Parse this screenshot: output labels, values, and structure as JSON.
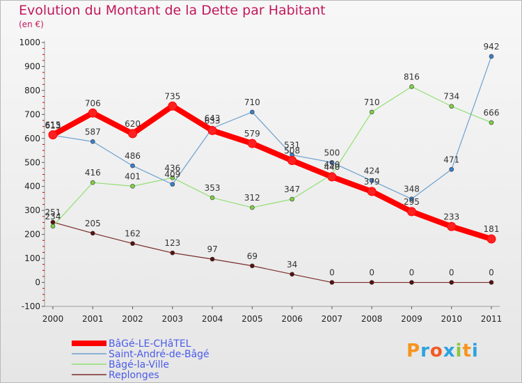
{
  "header": {
    "title": "Evolution du Montant de la Dette par Habitant",
    "subtitle": "(en €)"
  },
  "logo": {
    "text": "Proxiti",
    "colors": [
      "#f7941d",
      "#2ba3e0",
      "#f15a24",
      "#2ba3e0",
      "#8dc63f",
      "#f7941d",
      "#2ba3e0"
    ]
  },
  "chart_data": {
    "type": "line",
    "title": "Evolution du Montant de la Dette par Habitant",
    "subtitle": "(en €)",
    "x": [
      "2000",
      "2001",
      "2002",
      "2003",
      "2004",
      "2005",
      "2006",
      "2007",
      "2008",
      "2009",
      "2010",
      "2011"
    ],
    "ylim": [
      -100,
      1000
    ],
    "yticks": [
      -100,
      0,
      100,
      200,
      300,
      400,
      500,
      600,
      700,
      800,
      900,
      1000
    ],
    "grid": false,
    "legend": "bottom-left",
    "series": [
      {
        "name": "BâGé-LE-CHâTEL",
        "color": "#ff0000",
        "values": [
          615,
          706,
          620,
          735,
          633,
          579,
          508,
          440,
          379,
          295,
          233,
          181
        ]
      },
      {
        "name": "Saint-André-de-Bâgé",
        "color": "#6ca0d0",
        "values": [
          613,
          587,
          486,
          409,
          643,
          710,
          531,
          500,
          424,
          348,
          471,
          942
        ]
      },
      {
        "name": "Bâgé-la-Ville",
        "color": "#90e070",
        "values": [
          234,
          416,
          401,
          436,
          353,
          312,
          347,
          450,
          710,
          816,
          734,
          666
        ]
      },
      {
        "name": "Replonges",
        "color": "#7a2a2a",
        "values": [
          251,
          205,
          162,
          123,
          97,
          69,
          34,
          0,
          0,
          0,
          0,
          0
        ]
      }
    ],
    "data_labels": [
      [
        "615",
        "706",
        "620",
        "735",
        "633",
        "579",
        "508",
        "440",
        "379",
        "295",
        "233",
        "181"
      ],
      [
        "613",
        "587",
        "486",
        "409",
        "643",
        "710",
        "531",
        "500",
        "424",
        "348",
        "471",
        "942"
      ],
      [
        "234",
        "416",
        "401",
        "436",
        "353",
        "312",
        "347",
        "450",
        "710",
        "816",
        "734",
        "666"
      ],
      [
        "251",
        "205",
        "162",
        "123",
        "97",
        "69",
        "34",
        "0",
        "0",
        "0",
        "0",
        "0"
      ]
    ]
  }
}
